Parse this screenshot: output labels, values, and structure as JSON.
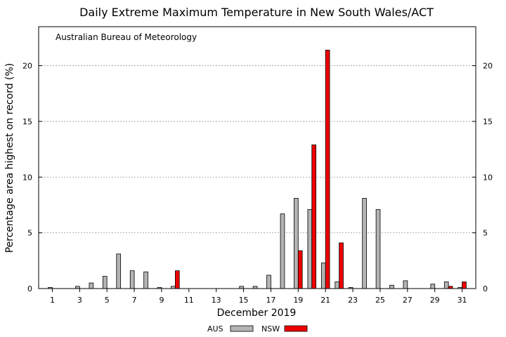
{
  "chart_data": {
    "type": "bar",
    "title": "Daily Extreme Maximum Temperature in New South Wales/ACT",
    "annotation": "Australian Bureau of Meteorology",
    "xlabel": "December 2019",
    "ylabel": "Percentage area highest on record (%)",
    "ylim": [
      0,
      23.5
    ],
    "yticks": [
      0,
      5,
      10,
      15,
      20
    ],
    "xlim": [
      0,
      32
    ],
    "xticks": [
      1,
      3,
      5,
      7,
      9,
      11,
      13,
      15,
      17,
      19,
      21,
      23,
      25,
      27,
      29,
      31
    ],
    "grid": true,
    "legend_position": "bottom-center",
    "days": [
      1,
      2,
      3,
      4,
      5,
      6,
      7,
      8,
      9,
      10,
      11,
      12,
      13,
      14,
      15,
      16,
      17,
      18,
      19,
      20,
      21,
      22,
      23,
      24,
      25,
      26,
      27,
      28,
      29,
      30,
      31
    ],
    "series": [
      {
        "name": "AUS",
        "color": "#b4b4b4",
        "values": [
          0.1,
          0,
          0.2,
          0.5,
          1.1,
          3.1,
          1.6,
          1.5,
          0.1,
          0.2,
          0,
          0,
          0,
          0,
          0.2,
          0.2,
          1.2,
          6.7,
          8.1,
          7.1,
          2.3,
          0.6,
          0.1,
          8.1,
          7.1,
          0.3,
          0.7,
          0,
          0.4,
          0.6,
          0.1
        ]
      },
      {
        "name": "NSW",
        "color": "#ee0000",
        "values": [
          0,
          0,
          0,
          0,
          0,
          0,
          0,
          0,
          0,
          1.6,
          0,
          0,
          0,
          0,
          0,
          0,
          0,
          0,
          3.4,
          12.9,
          21.4,
          4.1,
          0,
          0,
          0,
          0,
          0,
          0,
          0,
          0.2,
          0.6
        ]
      }
    ]
  }
}
